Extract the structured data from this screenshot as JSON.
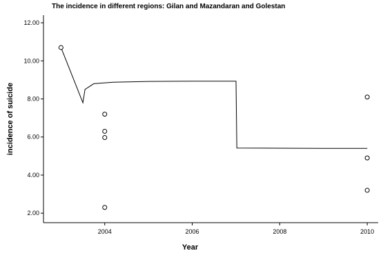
{
  "chart_data": {
    "type": "scatter",
    "title": "The incidence in different regions: Gilan and Mazandaran and Golestan",
    "xlabel": "Year",
    "ylabel": "incidence  of suicide",
    "xlim": [
      2002.6,
      2010.25
    ],
    "ylim": [
      1.5,
      12.4
    ],
    "grid": false,
    "x_ticks": [
      2004,
      2006,
      2008,
      2010
    ],
    "x_tick_labels": [
      "2004",
      "2006",
      "2008",
      "2010"
    ],
    "y_ticks": [
      2,
      4,
      6,
      8,
      10,
      12
    ],
    "y_tick_labels": [
      "2.00",
      "4.00",
      "6.00",
      "8.00",
      "10.00",
      "12.00"
    ],
    "points": [
      {
        "x": 2003,
        "y": 10.7
      },
      {
        "x": 2004,
        "y": 7.2
      },
      {
        "x": 2004,
        "y": 6.3
      },
      {
        "x": 2004,
        "y": 5.97
      },
      {
        "x": 2004,
        "y": 2.3
      },
      {
        "x": 2010,
        "y": 8.1
      },
      {
        "x": 2010,
        "y": 4.9
      },
      {
        "x": 2010,
        "y": 3.2
      }
    ],
    "fit_line": [
      {
        "x": 2003,
        "y": 10.7
      },
      {
        "x": 2003.5,
        "y": 7.8
      },
      {
        "x": 2003.55,
        "y": 8.5
      },
      {
        "x": 2003.75,
        "y": 8.8
      },
      {
        "x": 2004.2,
        "y": 8.88
      },
      {
        "x": 2005,
        "y": 8.92
      },
      {
        "x": 2006,
        "y": 8.93
      },
      {
        "x": 2007,
        "y": 8.93
      },
      {
        "x": 2007.02,
        "y": 5.42
      },
      {
        "x": 2008,
        "y": 5.41
      },
      {
        "x": 2009,
        "y": 5.4
      },
      {
        "x": 2010,
        "y": 5.4
      }
    ]
  }
}
